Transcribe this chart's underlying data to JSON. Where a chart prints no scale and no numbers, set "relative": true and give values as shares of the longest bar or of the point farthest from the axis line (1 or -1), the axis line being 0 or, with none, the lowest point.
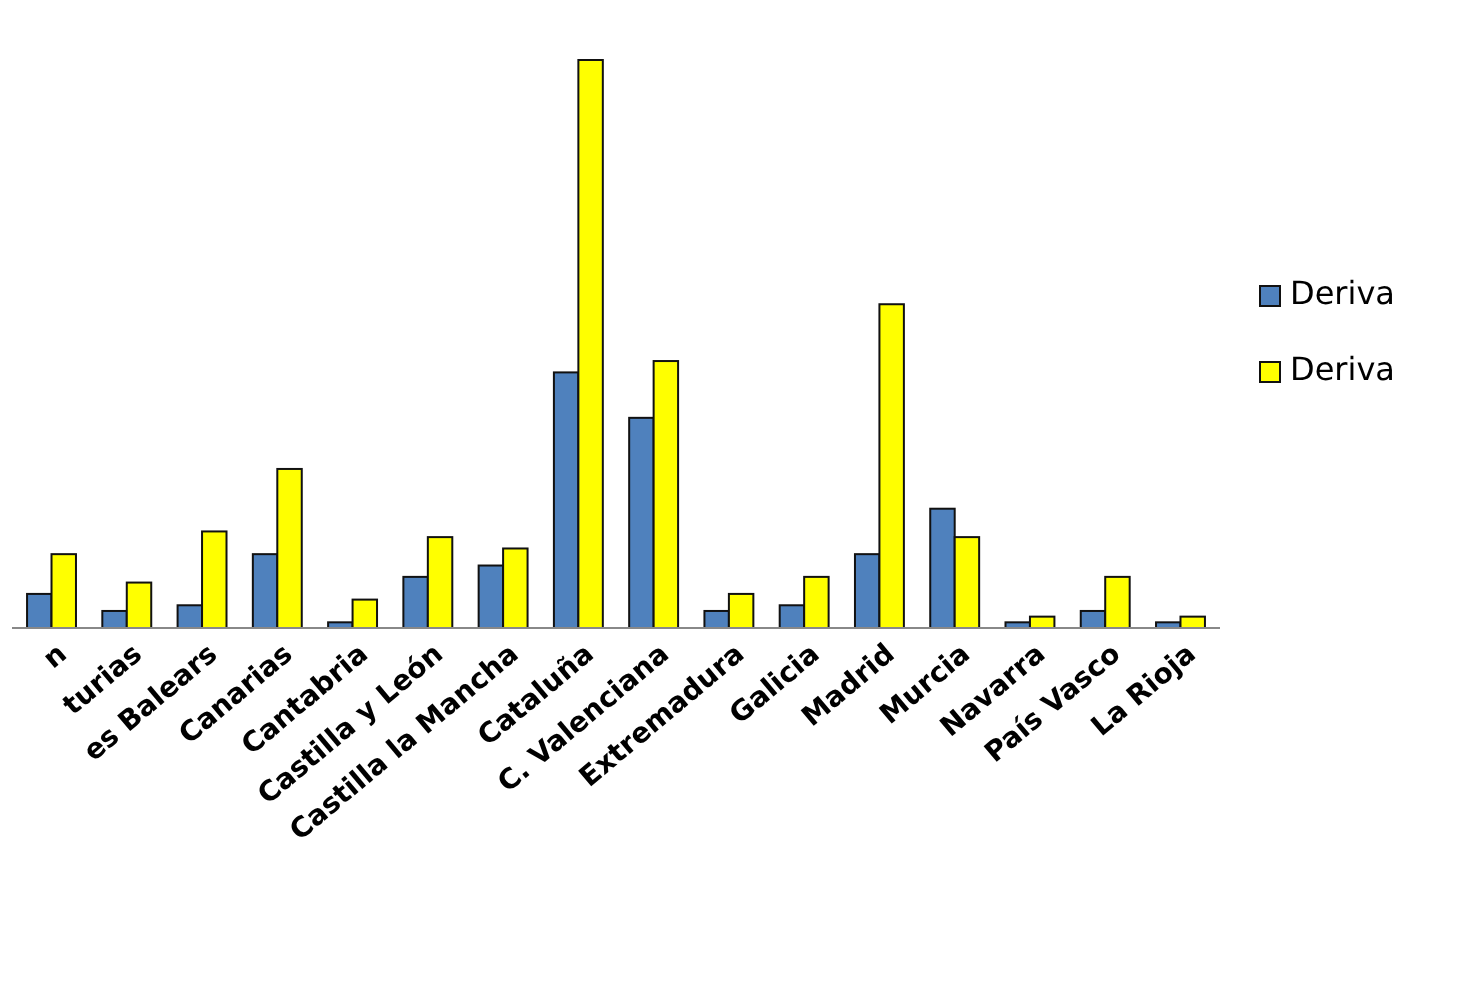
{
  "chart_data": {
    "type": "bar",
    "relative": true,
    "legend": "right",
    "categories": [
      "n",
      "turias",
      "es Balears",
      "Canarias",
      "Cantabria",
      "Castilla y León",
      "Castilla la Mancha",
      "Cataluña",
      "C. Valenciana",
      "Extremadura",
      "Galicia",
      "Madrid",
      "Murcia",
      "Navarra",
      "País Vasco",
      "La Rioja"
    ],
    "series": [
      {
        "name": "Deriva",
        "color": "#4f81bd",
        "values": [
          0.06,
          0.03,
          0.04,
          0.13,
          0.01,
          0.09,
          0.11,
          0.45,
          0.37,
          0.03,
          0.04,
          0.13,
          0.21,
          0.01,
          0.03,
          0.01
        ]
      },
      {
        "name": "Deriva",
        "color": "#ffff00",
        "values": [
          0.13,
          0.08,
          0.17,
          0.28,
          0.05,
          0.16,
          0.14,
          1,
          0.47,
          0.06,
          0.09,
          0.57,
          0.16,
          0.02,
          0.09,
          0.02
        ]
      }
    ]
  }
}
